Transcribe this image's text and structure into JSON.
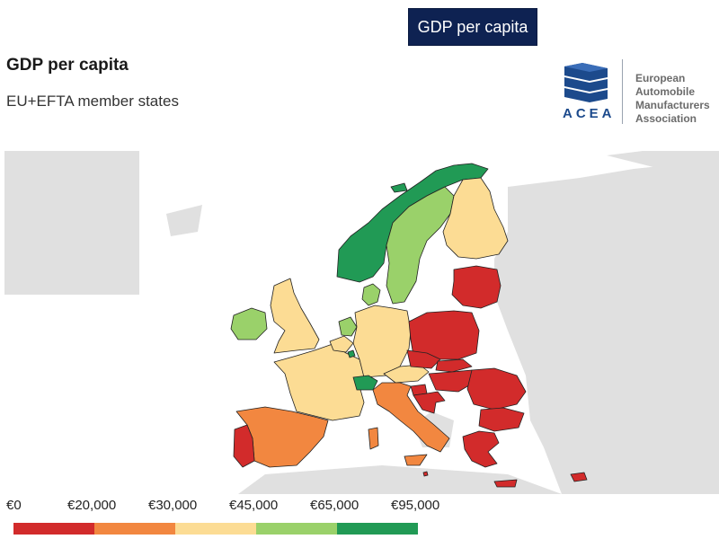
{
  "header": {
    "tab_label": "GDP per capita",
    "title": "GDP per capita",
    "subtitle": "EU+EFTA member states"
  },
  "logo": {
    "word": "ACEA",
    "lines": [
      "European",
      "Automobile",
      "Manufacturers",
      "Association"
    ],
    "color": "#1c4a8c"
  },
  "colors": {
    "red": "#d22b2b",
    "orange": "#f28740",
    "yellow": "#fcdc94",
    "lightgreen": "#9ad16a",
    "darkgreen": "#219a55",
    "background_land": "#e0e0e0",
    "border": "#222222"
  },
  "legend": {
    "labels": [
      "€0",
      "€20,000",
      "€30,000",
      "€45,000",
      "€65,000",
      "€95,000"
    ],
    "bins": [
      {
        "from": 0,
        "to": 20000,
        "color": "#d22b2b"
      },
      {
        "from": 20000,
        "to": 30000,
        "color": "#f28740"
      },
      {
        "from": 30000,
        "to": 45000,
        "color": "#fcdc94"
      },
      {
        "from": 45000,
        "to": 65000,
        "color": "#9ad16a"
      },
      {
        "from": 65000,
        "to": 95000,
        "color": "#219a55"
      }
    ]
  },
  "regions": [
    {
      "name": "Norway",
      "class": "darkgreen"
    },
    {
      "name": "Sweden",
      "class": "lightgreen"
    },
    {
      "name": "Finland",
      "class": "yellow"
    },
    {
      "name": "Denmark",
      "class": "lightgreen"
    },
    {
      "name": "Ireland",
      "class": "lightgreen"
    },
    {
      "name": "United Kingdom",
      "class": "yellow"
    },
    {
      "name": "Netherlands",
      "class": "lightgreen"
    },
    {
      "name": "Belgium",
      "class": "yellow"
    },
    {
      "name": "Luxembourg",
      "class": "darkgreen"
    },
    {
      "name": "France",
      "class": "yellow"
    },
    {
      "name": "Germany",
      "class": "yellow"
    },
    {
      "name": "Austria",
      "class": "yellow"
    },
    {
      "name": "Switzerland",
      "class": "darkgreen"
    },
    {
      "name": "Italy",
      "class": "orange"
    },
    {
      "name": "Spain",
      "class": "orange"
    },
    {
      "name": "Portugal",
      "class": "red"
    },
    {
      "name": "Poland",
      "class": "red"
    },
    {
      "name": "Baltic states",
      "class": "red"
    },
    {
      "name": "Czechia",
      "class": "red"
    },
    {
      "name": "Slovakia",
      "class": "red"
    },
    {
      "name": "Hungary",
      "class": "red"
    },
    {
      "name": "Slovenia",
      "class": "red"
    },
    {
      "name": "Croatia",
      "class": "red"
    },
    {
      "name": "Romania",
      "class": "red"
    },
    {
      "name": "Bulgaria",
      "class": "red"
    },
    {
      "name": "Greece",
      "class": "red"
    },
    {
      "name": "Cyprus",
      "class": "red"
    },
    {
      "name": "Malta",
      "class": "red"
    }
  ]
}
